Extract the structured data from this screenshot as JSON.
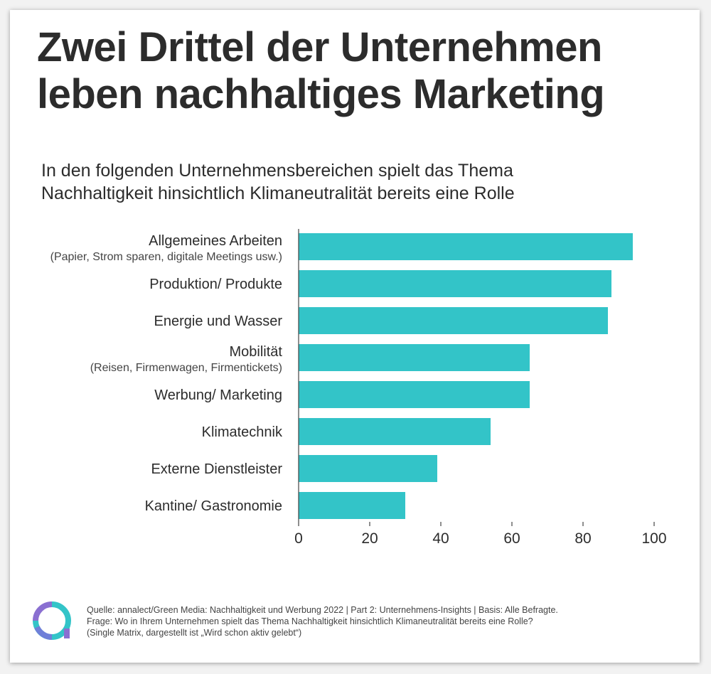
{
  "title_line1": "Zwei Drittel der Unternehmen",
  "title_line2": "leben nachhaltiges Marketing",
  "subtitle_line1": "In den folgenden Unternehmensbereichen spielt das Thema",
  "subtitle_line2": "Nachhaltigkeit hinsichtlich Klimaneutralität bereits eine Rolle",
  "chart_data": {
    "type": "bar",
    "orientation": "horizontal",
    "categories": [
      {
        "label": "Allgemeines Arbeiten",
        "sublabel": "(Papier, Strom sparen, digitale Meetings usw.)"
      },
      {
        "label": "Produktion/ Produkte",
        "sublabel": ""
      },
      {
        "label": "Energie und Wasser",
        "sublabel": ""
      },
      {
        "label": "Mobilität",
        "sublabel": "(Reisen, Firmenwagen, Firmentickets)"
      },
      {
        "label": "Werbung/ Marketing",
        "sublabel": ""
      },
      {
        "label": "Klimatechnik",
        "sublabel": ""
      },
      {
        "label": "Externe Dienstleister",
        "sublabel": ""
      },
      {
        "label": "Kantine/ Gastronomie",
        "sublabel": ""
      }
    ],
    "values": [
      94,
      88,
      87,
      65,
      65,
      54,
      39,
      30
    ],
    "xlim": [
      0,
      100
    ],
    "xticks": [
      0,
      20,
      40,
      60,
      80,
      100
    ],
    "bar_color": "#33c4c8",
    "grid": false
  },
  "source": {
    "line1": "Quelle: annalect/Green Media: Nachhaltigkeit und Werbung 2022 | Part 2: Unternehmens-Insights | Basis: Alle Befragte.",
    "line2": "Frage: Wo in Ihrem Unternehmen spielt das Thema Nachhaltigkeit hinsichtlich Klimaneutralität bereits eine Rolle?",
    "line3": "(Single Matrix, dargestellt ist „Wird schon aktiv gelebt“)"
  },
  "logo": {
    "icon": "annalect-logo-icon",
    "colors": [
      "#33c4c8",
      "#8a6fd1"
    ]
  }
}
